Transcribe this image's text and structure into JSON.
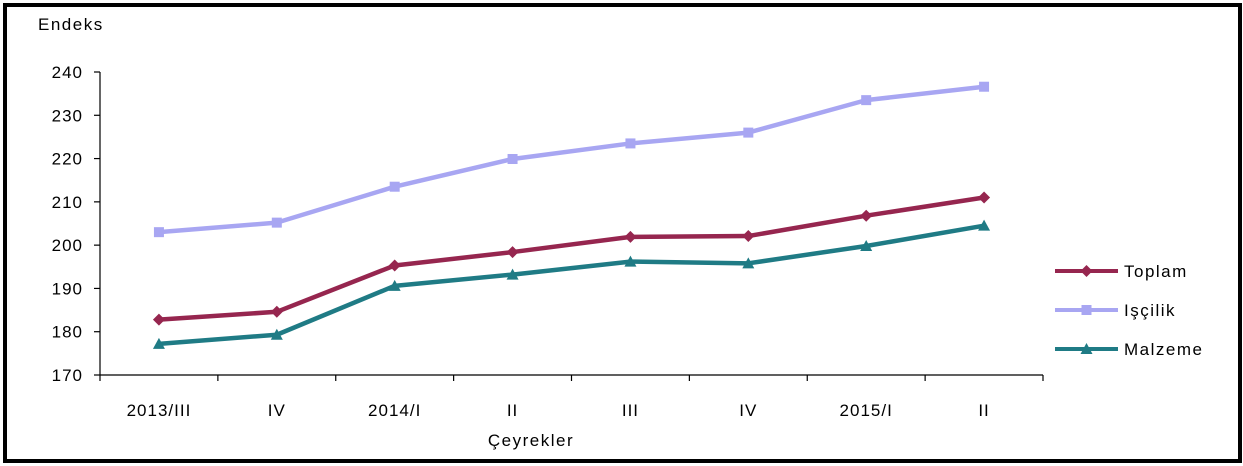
{
  "chart_data": {
    "type": "line",
    "ylabel": "Endeks",
    "xlabel": "Çeyrekler",
    "categories": [
      "2013/III",
      "IV",
      "2014/I",
      "II",
      "III",
      "IV",
      "2015/I",
      "II"
    ],
    "ylim": [
      170,
      240
    ],
    "yticks": [
      170,
      180,
      190,
      200,
      210,
      220,
      230,
      240
    ],
    "grid": false,
    "legend_position": "right",
    "series": [
      {
        "name": "Toplam",
        "color": "#96264f",
        "marker": "diamond",
        "values": [
          182.8,
          184.6,
          195.3,
          198.4,
          201.9,
          202.1,
          206.8,
          211.0
        ]
      },
      {
        "name": "Işçilik",
        "color": "#a8a6f2",
        "marker": "square",
        "values": [
          203.0,
          205.2,
          213.5,
          219.9,
          223.5,
          226.0,
          233.5,
          236.6
        ]
      },
      {
        "name": "Malzeme",
        "color": "#1f7b85",
        "marker": "triangle",
        "values": [
          177.2,
          179.3,
          190.6,
          193.2,
          196.2,
          195.8,
          199.8,
          204.5
        ]
      }
    ]
  }
}
